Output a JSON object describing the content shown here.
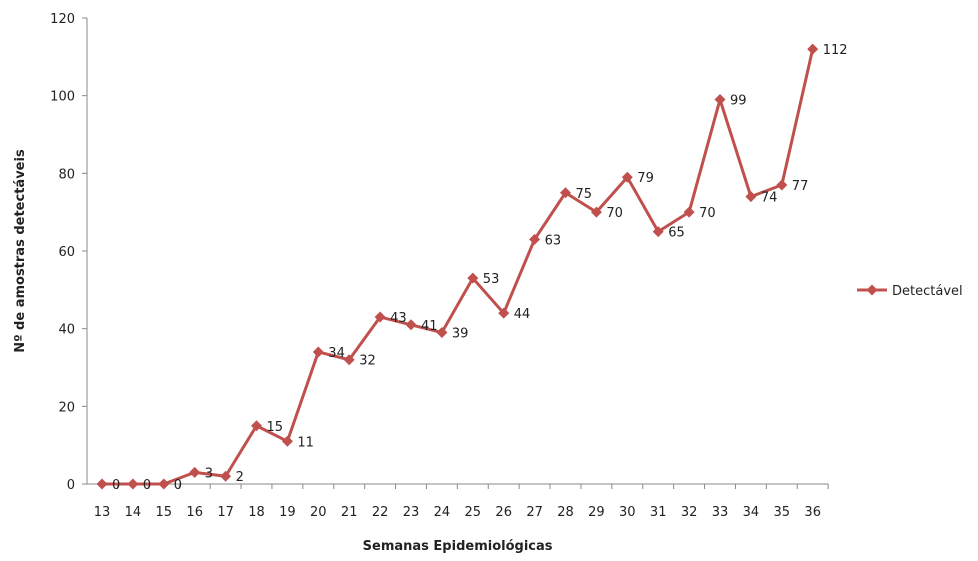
{
  "chart_data": {
    "type": "line",
    "xlabel": "Semanas Epidemiológicas",
    "ylabel": "Nº de amostras detectáveis",
    "ylim": [
      0,
      120
    ],
    "yticks": [
      0,
      20,
      40,
      60,
      80,
      100,
      120
    ],
    "grid": false,
    "legend_position": "right",
    "categories": [
      "13",
      "14",
      "15",
      "16",
      "17",
      "18",
      "19",
      "20",
      "21",
      "22",
      "23",
      "24",
      "25",
      "26",
      "27",
      "28",
      "29",
      "30",
      "31",
      "32",
      "33",
      "34",
      "35",
      "36"
    ],
    "series": [
      {
        "name": "Detectável",
        "color": "#C0504D",
        "marker": "diamond",
        "values": [
          0,
          0,
          0,
          3,
          2,
          15,
          11,
          34,
          32,
          43,
          41,
          39,
          53,
          44,
          63,
          75,
          70,
          79,
          65,
          70,
          99,
          74,
          77,
          112
        ]
      }
    ]
  }
}
